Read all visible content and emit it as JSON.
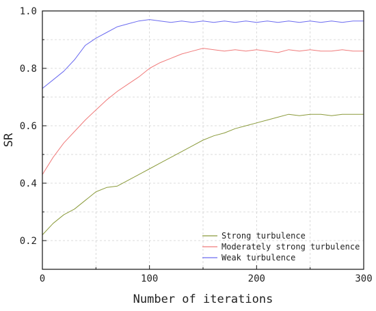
{
  "chart_data": {
    "type": "line",
    "title": "",
    "xlabel": "Number of iterations",
    "ylabel": "SR",
    "xlim": [
      0,
      300
    ],
    "ylim": [
      0.1,
      1.0
    ],
    "xticks": [
      0,
      100,
      200,
      300
    ],
    "yticks": [
      0.2,
      0.4,
      0.6,
      0.8,
      1.0
    ],
    "yticklabels": [
      "0.2",
      "0.4",
      "0.6",
      "0.8",
      "1.0"
    ],
    "grid": true,
    "legend_position": "bottom-right",
    "series": [
      {
        "name": "Strong turbulence",
        "color": "#8a9a3a",
        "x": [
          0,
          10,
          20,
          30,
          40,
          50,
          60,
          70,
          80,
          90,
          100,
          110,
          120,
          130,
          140,
          150,
          160,
          170,
          180,
          190,
          200,
          210,
          220,
          230,
          240,
          250,
          260,
          270,
          280,
          290,
          300
        ],
        "y": [
          0.22,
          0.26,
          0.29,
          0.31,
          0.34,
          0.37,
          0.385,
          0.39,
          0.41,
          0.43,
          0.45,
          0.47,
          0.49,
          0.51,
          0.53,
          0.55,
          0.565,
          0.575,
          0.59,
          0.6,
          0.61,
          0.62,
          0.63,
          0.64,
          0.635,
          0.64,
          0.64,
          0.635,
          0.64,
          0.64,
          0.64
        ]
      },
      {
        "name": "Moderately strong turbulence",
        "color": "#f07a7a",
        "x": [
          0,
          10,
          20,
          30,
          40,
          50,
          60,
          70,
          80,
          90,
          100,
          110,
          120,
          130,
          140,
          150,
          160,
          170,
          180,
          190,
          200,
          210,
          220,
          230,
          240,
          250,
          260,
          270,
          280,
          290,
          300
        ],
        "y": [
          0.43,
          0.49,
          0.54,
          0.58,
          0.62,
          0.655,
          0.69,
          0.72,
          0.745,
          0.77,
          0.8,
          0.82,
          0.835,
          0.85,
          0.86,
          0.87,
          0.865,
          0.86,
          0.865,
          0.86,
          0.865,
          0.86,
          0.855,
          0.865,
          0.86,
          0.865,
          0.86,
          0.86,
          0.865,
          0.86,
          0.86
        ]
      },
      {
        "name": "Weak turbulence",
        "color": "#6a6af0",
        "x": [
          0,
          10,
          20,
          30,
          40,
          50,
          60,
          70,
          80,
          90,
          100,
          110,
          120,
          130,
          140,
          150,
          160,
          170,
          180,
          190,
          200,
          210,
          220,
          230,
          240,
          250,
          260,
          270,
          280,
          290,
          300
        ],
        "y": [
          0.73,
          0.76,
          0.79,
          0.83,
          0.88,
          0.905,
          0.925,
          0.945,
          0.955,
          0.965,
          0.97,
          0.965,
          0.96,
          0.965,
          0.96,
          0.965,
          0.96,
          0.965,
          0.96,
          0.965,
          0.96,
          0.965,
          0.96,
          0.965,
          0.96,
          0.965,
          0.96,
          0.965,
          0.96,
          0.965,
          0.965
        ]
      }
    ]
  }
}
